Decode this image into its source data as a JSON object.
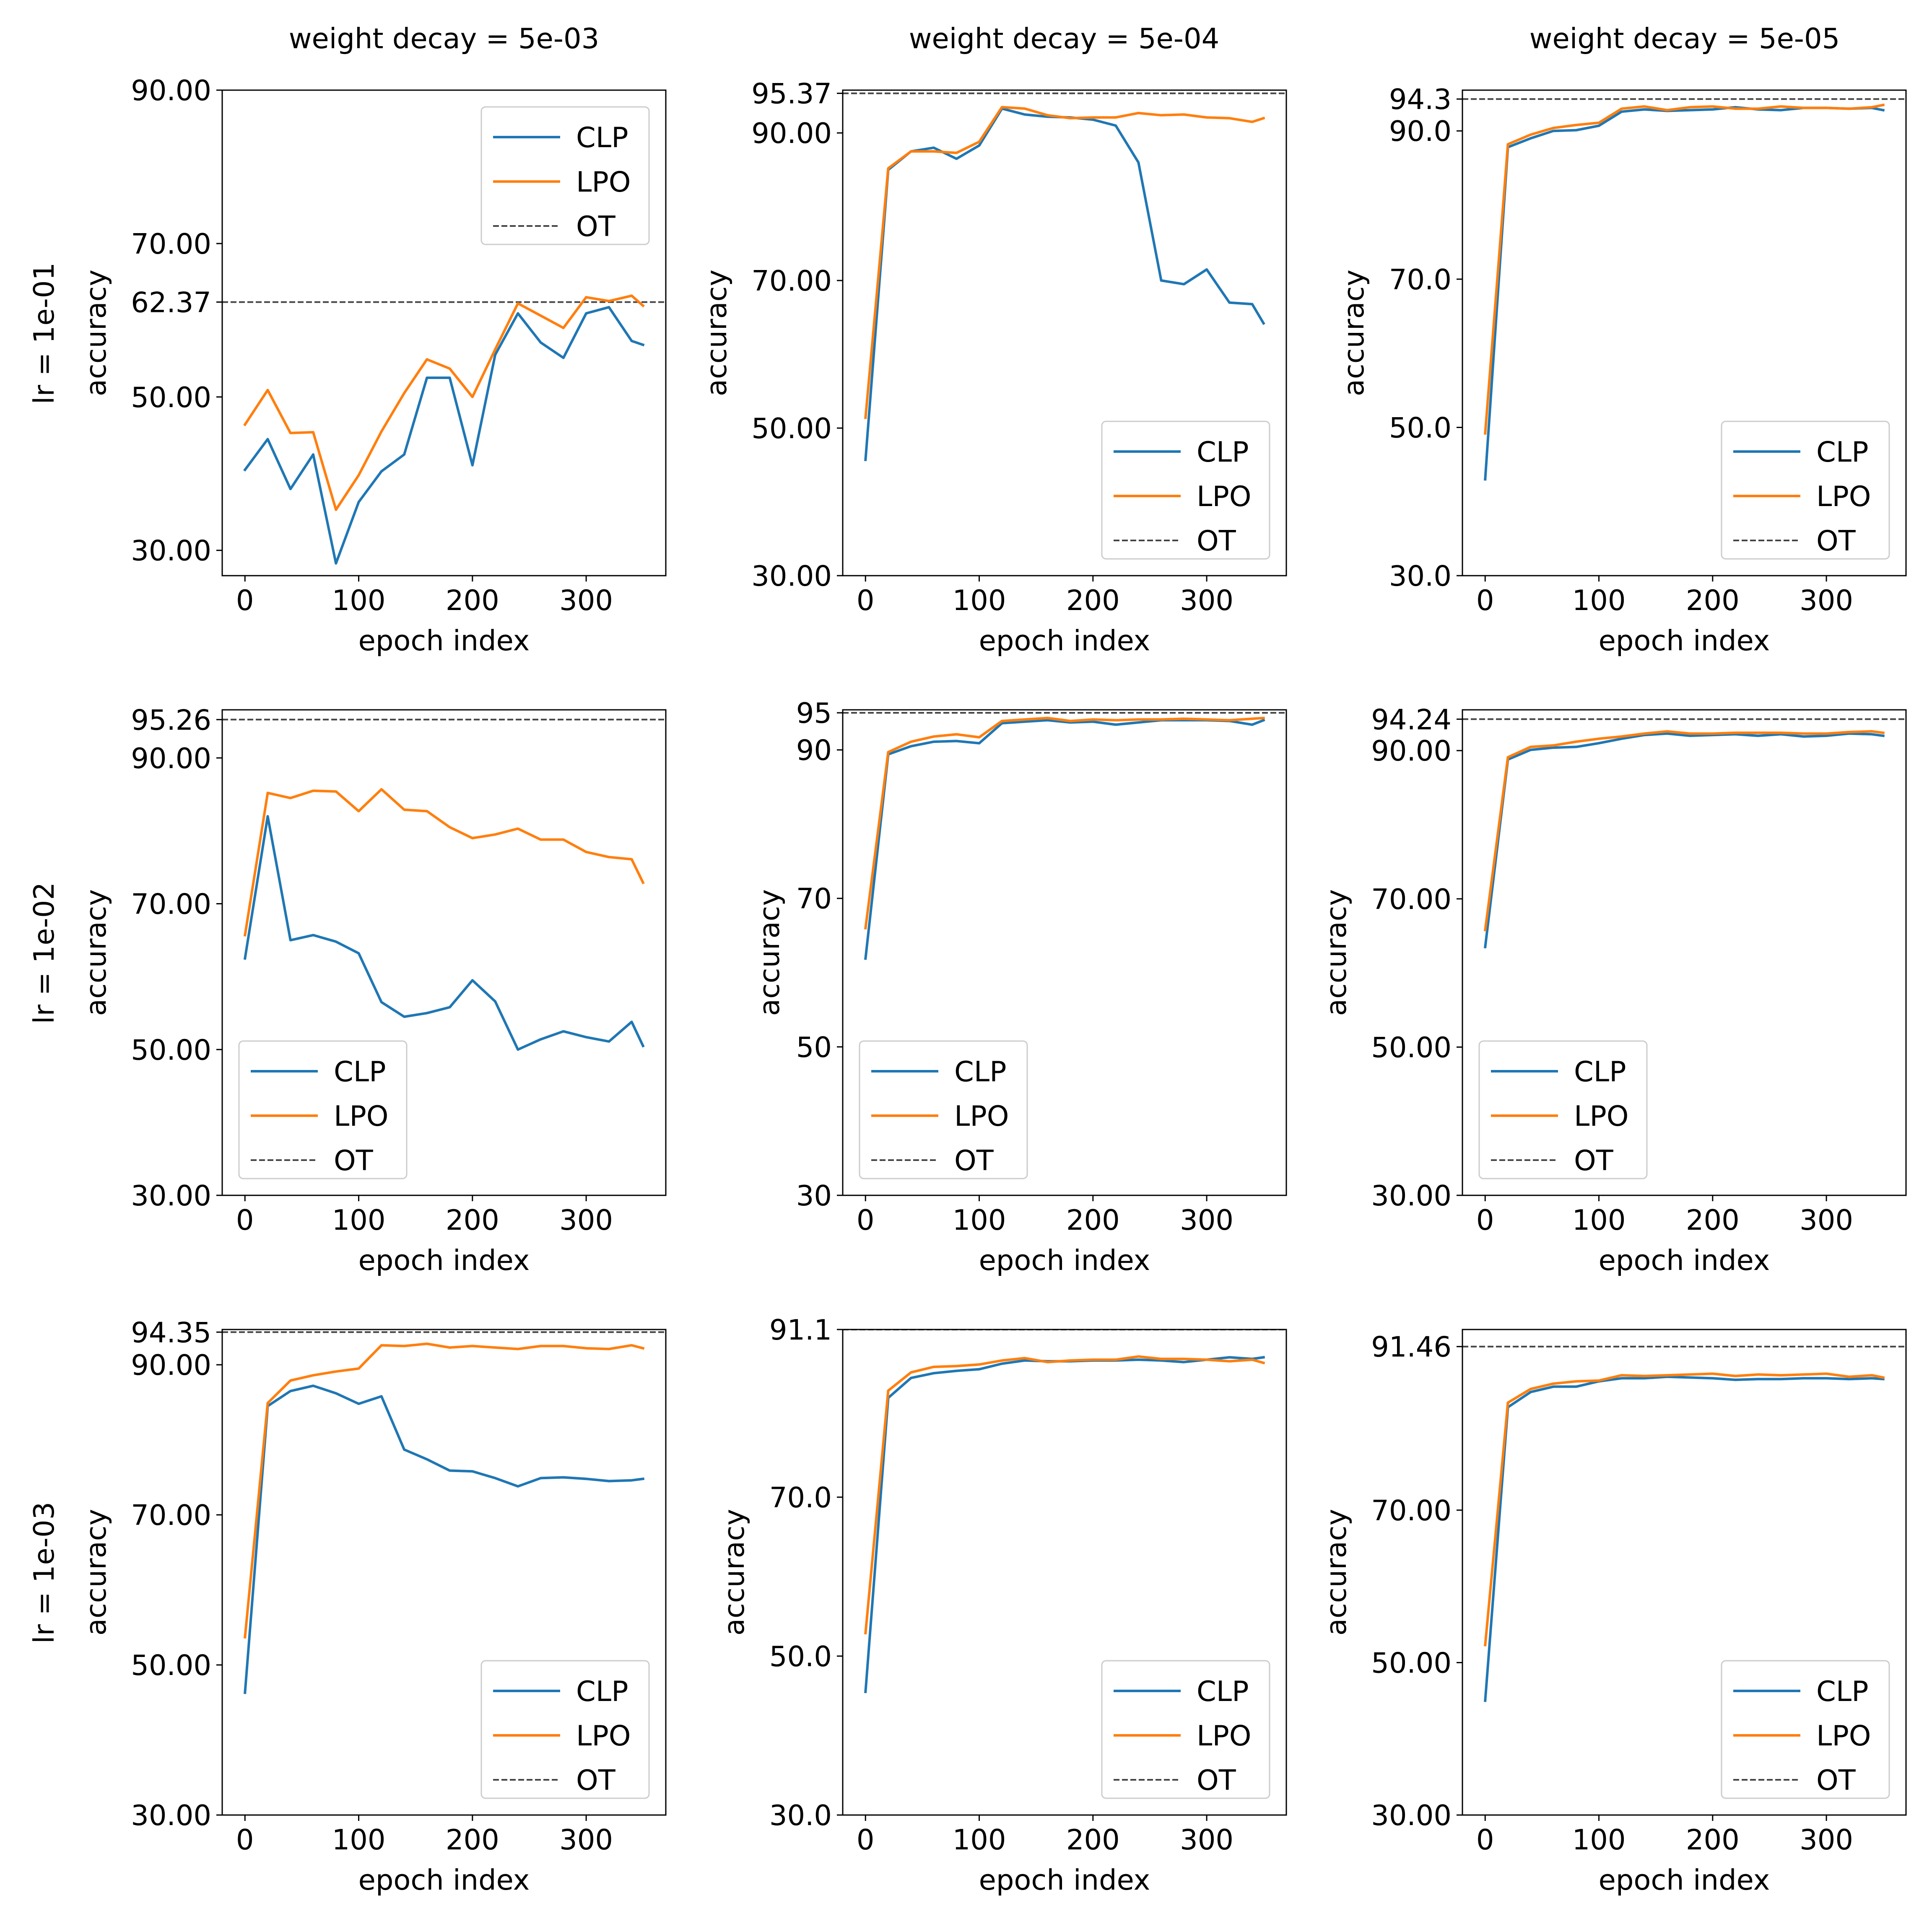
{
  "figure": {
    "colors": {
      "CLP": "#1f77b4",
      "LPO": "#ff7f0e",
      "OT": "#444444"
    },
    "column_titles": [
      "weight decay = 5e-03",
      "weight decay = 5e-04",
      "weight decay = 5e-05"
    ],
    "row_titles": [
      "lr = 1e-01",
      "lr = 1e-02",
      "lr = 1e-03"
    ]
  },
  "chart_data": [
    {
      "type": "line",
      "title": "weight decay = 5e-03",
      "row_label": "lr = 1e-01",
      "xlabel": "epoch index",
      "ylabel": "accuracy",
      "xlim": [
        -20,
        370
      ],
      "ylim": [
        26.7,
        90
      ],
      "xticks": [
        "0",
        "100",
        "200",
        "300"
      ],
      "xtick_values": [
        0,
        100,
        200,
        300
      ],
      "yticks": [
        "30.00",
        "50.00",
        "62.37",
        "70.00",
        "90.00"
      ],
      "ytick_values": [
        30,
        50,
        62.37,
        70,
        90
      ],
      "legend": [
        "CLP",
        "LPO",
        "OT"
      ],
      "legend_loc": "upper right",
      "x": [
        0,
        20,
        40,
        60,
        80,
        100,
        120,
        140,
        160,
        180,
        200,
        220,
        240,
        260,
        280,
        300,
        320,
        340,
        350
      ],
      "series": [
        {
          "name": "CLP",
          "values": [
            40.5,
            44.5,
            38,
            42.5,
            28.3,
            36.3,
            40.3,
            42.5,
            52.5,
            52.5,
            41.1,
            55.5,
            60.9,
            57.1,
            55.1,
            60.9,
            61.7,
            57.3,
            56.8
          ]
        },
        {
          "name": "LPO",
          "values": [
            46.4,
            50.9,
            45.3,
            45.4,
            35.3,
            39.8,
            45.5,
            50.5,
            54.9,
            53.7,
            50,
            56.2,
            62.2,
            60.6,
            59,
            63,
            62.5,
            63.2,
            61.9
          ]
        }
      ],
      "ot": 62.37
    },
    {
      "type": "line",
      "title": "weight decay = 5e-04",
      "row_label": "",
      "xlabel": "epoch index",
      "ylabel": "accuracy",
      "xlim": [
        -20,
        370
      ],
      "ylim": [
        30,
        95.8
      ],
      "xticks": [
        "0",
        "100",
        "200",
        "300"
      ],
      "xtick_values": [
        0,
        100,
        200,
        300
      ],
      "yticks": [
        "30.00",
        "50.00",
        "70.00",
        "90.00",
        "95.37"
      ],
      "ytick_values": [
        30,
        50,
        70,
        90,
        95.37
      ],
      "legend": [
        "CLP",
        "LPO",
        "OT"
      ],
      "legend_loc": "lower right",
      "x": [
        0,
        20,
        40,
        60,
        80,
        100,
        120,
        140,
        160,
        180,
        200,
        220,
        240,
        260,
        280,
        300,
        320,
        340,
        350
      ],
      "series": [
        {
          "name": "CLP",
          "values": [
            45.7,
            85,
            87.5,
            88,
            86.5,
            88.3,
            93.3,
            92.5,
            92.2,
            92.1,
            91.8,
            91,
            86,
            70,
            69.5,
            71.5,
            67,
            66.8,
            64.2
          ]
        },
        {
          "name": "LPO",
          "values": [
            51.4,
            85.2,
            87.5,
            87.5,
            87.3,
            88.8,
            93.5,
            93.3,
            92.4,
            92,
            92.1,
            92.1,
            92.7,
            92.4,
            92.5,
            92.1,
            92,
            91.5,
            92
          ]
        }
      ],
      "ot": 95.37
    },
    {
      "type": "line",
      "title": "weight decay = 5e-05",
      "row_label": "",
      "xlabel": "epoch index",
      "ylabel": "accuracy",
      "xlim": [
        -20,
        370
      ],
      "ylim": [
        30,
        95.5
      ],
      "xticks": [
        "0",
        "100",
        "200",
        "300"
      ],
      "xtick_values": [
        0,
        100,
        200,
        300
      ],
      "yticks": [
        "30.0",
        "50.0",
        "70.0",
        "90.0",
        "94.3"
      ],
      "ytick_values": [
        30,
        50,
        70,
        90,
        94.3
      ],
      "legend": [
        "CLP",
        "LPO",
        "OT"
      ],
      "legend_loc": "lower right",
      "x": [
        0,
        20,
        40,
        60,
        80,
        100,
        120,
        140,
        160,
        180,
        200,
        220,
        240,
        260,
        280,
        300,
        320,
        340,
        350
      ],
      "series": [
        {
          "name": "CLP",
          "values": [
            43,
            87.8,
            89,
            90,
            90.1,
            90.7,
            92.6,
            92.9,
            92.7,
            92.8,
            92.9,
            93.2,
            92.9,
            92.8,
            93.1,
            93.1,
            93,
            93.1,
            92.8
          ]
        },
        {
          "name": "LPO",
          "values": [
            49.2,
            88.2,
            89.5,
            90.4,
            90.8,
            91.1,
            93,
            93.3,
            92.8,
            93.2,
            93.3,
            93,
            93,
            93.3,
            93.1,
            93.1,
            93,
            93.2,
            93.5
          ]
        }
      ],
      "ot": 94.3
    },
    {
      "type": "line",
      "title": "",
      "row_label": "lr = 1e-02",
      "xlabel": "epoch index",
      "ylabel": "accuracy",
      "xlim": [
        -20,
        370
      ],
      "ylim": [
        30,
        96.6
      ],
      "xticks": [
        "0",
        "100",
        "200",
        "300"
      ],
      "xtick_values": [
        0,
        100,
        200,
        300
      ],
      "yticks": [
        "30.00",
        "50.00",
        "70.00",
        "90.00",
        "95.26"
      ],
      "ytick_values": [
        30,
        50,
        70,
        90,
        95.26
      ],
      "legend": [
        "CLP",
        "LPO",
        "OT"
      ],
      "legend_loc": "lower left",
      "x": [
        0,
        20,
        40,
        60,
        80,
        100,
        120,
        140,
        160,
        180,
        200,
        220,
        240,
        260,
        280,
        300,
        320,
        340,
        350
      ],
      "series": [
        {
          "name": "CLP",
          "values": [
            62.5,
            82,
            65,
            65.7,
            64.8,
            63.2,
            56.5,
            54.5,
            55,
            55.8,
            59.5,
            56.6,
            50,
            51.4,
            52.5,
            51.7,
            51.1,
            53.8,
            50.5
          ]
        },
        {
          "name": "LPO",
          "values": [
            65.7,
            85.2,
            84.5,
            85.5,
            85.4,
            82.7,
            85.7,
            82.9,
            82.7,
            80.5,
            79,
            79.5,
            80.3,
            78.8,
            78.8,
            77.1,
            76.4,
            76.1,
            72.9
          ]
        }
      ],
      "ot": 95.26
    },
    {
      "type": "line",
      "title": "",
      "row_label": "",
      "xlabel": "epoch index",
      "ylabel": "accuracy",
      "xlim": [
        -20,
        370
      ],
      "ylim": [
        30,
        95.4
      ],
      "xticks": [
        "0",
        "100",
        "200",
        "300"
      ],
      "xtick_values": [
        0,
        100,
        200,
        300
      ],
      "yticks": [
        "30",
        "50",
        "70",
        "90",
        "95"
      ],
      "ytick_values": [
        30,
        50,
        70,
        90,
        95
      ],
      "legend": [
        "CLP",
        "LPO",
        "OT"
      ],
      "legend_loc": "lower left",
      "x": [
        0,
        20,
        40,
        60,
        80,
        100,
        120,
        140,
        160,
        180,
        200,
        220,
        240,
        260,
        280,
        300,
        320,
        340,
        350
      ],
      "series": [
        {
          "name": "CLP",
          "values": [
            61.9,
            89.4,
            90.5,
            91.1,
            91.2,
            90.9,
            93.6,
            93.8,
            94,
            93.7,
            93.8,
            93.4,
            93.7,
            94,
            94,
            94,
            93.9,
            93.4,
            94
          ]
        },
        {
          "name": "LPO",
          "values": [
            66,
            89.7,
            91.1,
            91.8,
            92.1,
            91.7,
            93.9,
            94.1,
            94.3,
            93.9,
            94.1,
            94,
            94.1,
            94.1,
            94.2,
            94.1,
            94,
            94.2,
            94.3
          ]
        }
      ],
      "ot": 95
    },
    {
      "type": "line",
      "title": "",
      "row_label": "",
      "xlabel": "epoch index",
      "ylabel": "accuracy",
      "xlim": [
        -20,
        370
      ],
      "ylim": [
        30,
        95.5
      ],
      "xticks": [
        "0",
        "100",
        "200",
        "300"
      ],
      "xtick_values": [
        0,
        100,
        200,
        300
      ],
      "yticks": [
        "30.00",
        "50.00",
        "70.00",
        "90.00",
        "94.24"
      ],
      "ytick_values": [
        30,
        50,
        70,
        90,
        94.24
      ],
      "legend": [
        "CLP",
        "LPO",
        "OT"
      ],
      "legend_loc": "lower left",
      "x": [
        0,
        20,
        40,
        60,
        80,
        100,
        120,
        140,
        160,
        180,
        200,
        220,
        240,
        260,
        280,
        300,
        320,
        340,
        350
      ],
      "series": [
        {
          "name": "CLP",
          "values": [
            63.5,
            88.8,
            90.1,
            90.4,
            90.5,
            91,
            91.6,
            92.1,
            92.3,
            92,
            92.1,
            92.2,
            92,
            92.2,
            91.9,
            92,
            92.3,
            92.2,
            92
          ]
        },
        {
          "name": "LPO",
          "values": [
            65.8,
            89.1,
            90.5,
            90.7,
            91.2,
            91.6,
            91.9,
            92.3,
            92.6,
            92.3,
            92.3,
            92.4,
            92.4,
            92.4,
            92.3,
            92.3,
            92.5,
            92.6,
            92.4
          ]
        }
      ],
      "ot": 94.24
    },
    {
      "type": "line",
      "title": "",
      "row_label": "lr = 1e-03",
      "xlabel": "epoch index",
      "ylabel": "accuracy",
      "xlim": [
        -20,
        370
      ],
      "ylim": [
        30,
        94.7
      ],
      "xticks": [
        "0",
        "100",
        "200",
        "300"
      ],
      "xtick_values": [
        0,
        100,
        200,
        300
      ],
      "yticks": [
        "30.00",
        "50.00",
        "70.00",
        "90.00",
        "94.35"
      ],
      "ytick_values": [
        30,
        50,
        70,
        90,
        94.35
      ],
      "legend": [
        "CLP",
        "LPO",
        "OT"
      ],
      "legend_loc": "lower right",
      "x": [
        0,
        20,
        40,
        60,
        80,
        100,
        120,
        140,
        160,
        180,
        200,
        220,
        240,
        260,
        280,
        300,
        320,
        340,
        350
      ],
      "series": [
        {
          "name": "CLP",
          "values": [
            46.3,
            84.5,
            86.5,
            87.2,
            86.2,
            84.8,
            85.8,
            78.7,
            77.4,
            75.9,
            75.8,
            74.9,
            73.8,
            74.9,
            75,
            74.8,
            74.5,
            74.6,
            74.8
          ]
        },
        {
          "name": "LPO",
          "values": [
            53.7,
            84.9,
            87.9,
            88.6,
            89.1,
            89.5,
            92.6,
            92.5,
            92.8,
            92.3,
            92.5,
            92.3,
            92.1,
            92.5,
            92.5,
            92.2,
            92.1,
            92.6,
            92.2
          ]
        }
      ],
      "ot": 94.35
    },
    {
      "type": "line",
      "title": "",
      "row_label": "",
      "xlabel": "epoch index",
      "ylabel": "accuracy",
      "xlim": [
        -20,
        370
      ],
      "ylim": [
        30,
        91.1
      ],
      "xticks": [
        "0",
        "100",
        "200",
        "300"
      ],
      "xtick_values": [
        0,
        100,
        200,
        300
      ],
      "yticks": [
        "30.0",
        "50.0",
        "70.0",
        "91.1"
      ],
      "ytick_values": [
        30,
        50,
        70,
        91.1
      ],
      "legend": [
        "CLP",
        "LPO",
        "OT"
      ],
      "legend_loc": "lower right",
      "x": [
        0,
        20,
        40,
        60,
        80,
        100,
        120,
        140,
        160,
        180,
        200,
        220,
        240,
        260,
        280,
        300,
        320,
        340,
        350
      ],
      "series": [
        {
          "name": "CLP",
          "values": [
            45.5,
            82.5,
            85,
            85.6,
            85.9,
            86.1,
            86.8,
            87.2,
            87.1,
            87.1,
            87.2,
            87.2,
            87.3,
            87.2,
            87,
            87.3,
            87.6,
            87.4,
            87.6
          ]
        },
        {
          "name": "LPO",
          "values": [
            52.9,
            83.4,
            85.7,
            86.4,
            86.5,
            86.7,
            87.2,
            87.5,
            87,
            87.2,
            87.3,
            87.3,
            87.7,
            87.4,
            87.4,
            87.3,
            87.1,
            87.3,
            86.9
          ]
        }
      ],
      "ot": 91.1
    },
    {
      "type": "line",
      "title": "",
      "row_label": "",
      "xlabel": "epoch index",
      "ylabel": "accuracy",
      "xlim": [
        -20,
        370
      ],
      "ylim": [
        30,
        93.7
      ],
      "xticks": [
        "0",
        "100",
        "200",
        "300"
      ],
      "xtick_values": [
        0,
        100,
        200,
        300
      ],
      "yticks": [
        "30.00",
        "50.00",
        "70.00",
        "91.46"
      ],
      "ytick_values": [
        30,
        50,
        70,
        91.46
      ],
      "legend": [
        "CLP",
        "LPO",
        "OT"
      ],
      "legend_loc": "lower right",
      "x": [
        0,
        20,
        40,
        60,
        80,
        100,
        120,
        140,
        160,
        180,
        200,
        220,
        240,
        260,
        280,
        300,
        320,
        340,
        350
      ],
      "series": [
        {
          "name": "CLP",
          "values": [
            45,
            83.5,
            85.5,
            86.2,
            86.2,
            86.9,
            87.3,
            87.3,
            87.5,
            87.4,
            87.3,
            87.1,
            87.2,
            87.2,
            87.3,
            87.3,
            87.2,
            87.3,
            87.2
          ]
        },
        {
          "name": "LPO",
          "values": [
            52.3,
            84.1,
            85.9,
            86.6,
            86.9,
            87,
            87.7,
            87.6,
            87.7,
            87.8,
            87.9,
            87.6,
            87.8,
            87.7,
            87.8,
            87.9,
            87.5,
            87.7,
            87.4
          ]
        }
      ],
      "ot": 91.46
    }
  ]
}
